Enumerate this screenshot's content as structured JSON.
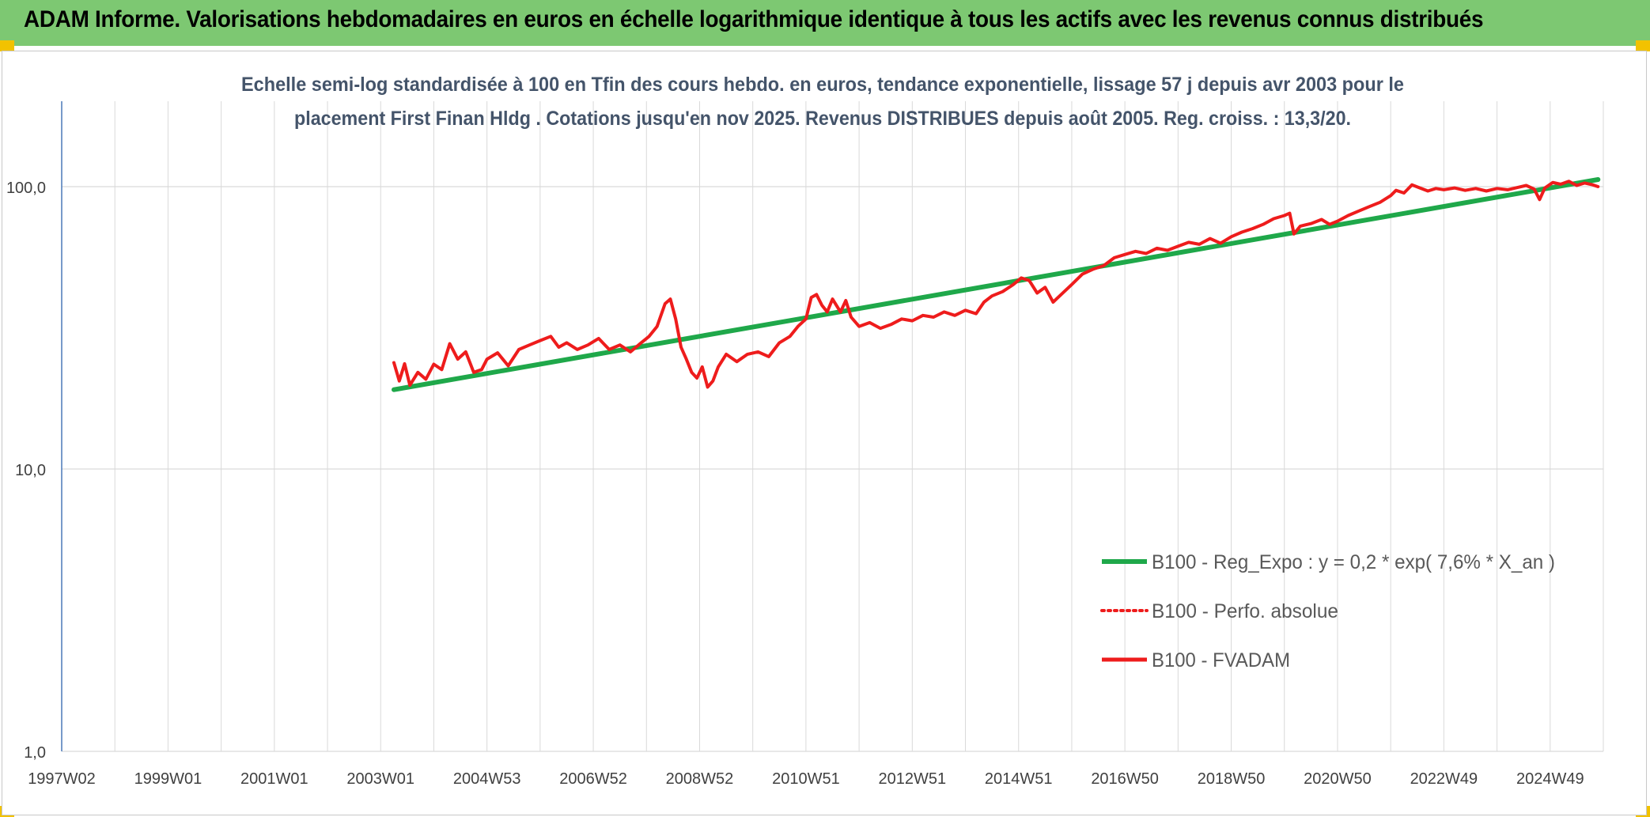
{
  "banner": {
    "title": "ADAM Informe. Valorisations hebdomadaires en euros en échelle logarithmique identique à tous les actifs avec les revenus connus distribués"
  },
  "colors": {
    "banner_bg": "#7dc872",
    "corner_accent": "#f2c200",
    "trend_line": "#1fa84a",
    "price_line": "#ee1c1c",
    "grid": "#d9d9d9",
    "axis_text": "#404040",
    "title_text": "#44546a"
  },
  "chart_data": {
    "type": "line",
    "title_line1": "Echelle semi-log standardisée à 100 en Tfin des cours hebdo. en euros, tendance exponentielle, lissage 57 j depuis avr 2003 pour le",
    "title_line2": "placement First Finan Hldg . Cotations jusqu'en nov 2025. Revenus DISTRIBUES depuis août 2005. Reg. croiss. : 13,3/20.",
    "y_scale": "log",
    "ylim": [
      1,
      100
    ],
    "y_ticks": [
      "100,0",
      "10,0",
      "1,0"
    ],
    "x_range": [
      1997.0,
      2026.0
    ],
    "x_ticks": [
      {
        "x": 1997.0,
        "label": "1997W02"
      },
      {
        "x": 1999.0,
        "label": "1999W01"
      },
      {
        "x": 2001.0,
        "label": "2001W01"
      },
      {
        "x": 2003.0,
        "label": "2003W01"
      },
      {
        "x": 2005.0,
        "label": "2004W53"
      },
      {
        "x": 2007.0,
        "label": "2006W52"
      },
      {
        "x": 2009.0,
        "label": "2008W52"
      },
      {
        "x": 2011.0,
        "label": "2010W51"
      },
      {
        "x": 2013.0,
        "label": "2012W51"
      },
      {
        "x": 2015.0,
        "label": "2014W51"
      },
      {
        "x": 2017.0,
        "label": "2016W50"
      },
      {
        "x": 2019.0,
        "label": "2018W50"
      },
      {
        "x": 2021.0,
        "label": "2020W50"
      },
      {
        "x": 2023.0,
        "label": "2022W49"
      },
      {
        "x": 2025.0,
        "label": "2024W49"
      }
    ],
    "grid": "vertical and horizontal",
    "legend_position": "lower-right",
    "series": [
      {
        "name": "B100 - Reg_Expo : y = 0,2 * exp( 7,6% *  X_an )",
        "style": "solid-thick",
        "color": "#1fa84a",
        "points": [
          [
            2003.25,
            19.1
          ],
          [
            2025.9,
            106.0
          ]
        ]
      },
      {
        "name": "B100 - Perfo. absolue",
        "style": "dotted",
        "color": "#ee1c1c",
        "points": []
      },
      {
        "name": "B100 - FVADAM",
        "style": "solid",
        "color": "#ee1c1c",
        "points": [
          [
            2003.25,
            23.8
          ],
          [
            2003.35,
            20.5
          ],
          [
            2003.45,
            23.6
          ],
          [
            2003.55,
            19.8
          ],
          [
            2003.7,
            22.0
          ],
          [
            2003.85,
            20.8
          ],
          [
            2004.0,
            23.5
          ],
          [
            2004.15,
            22.5
          ],
          [
            2004.3,
            27.8
          ],
          [
            2004.45,
            24.5
          ],
          [
            2004.6,
            26.0
          ],
          [
            2004.75,
            22.0
          ],
          [
            2004.9,
            22.5
          ],
          [
            2005.0,
            24.5
          ],
          [
            2005.2,
            25.8
          ],
          [
            2005.4,
            23.2
          ],
          [
            2005.6,
            26.5
          ],
          [
            2005.8,
            27.5
          ],
          [
            2006.0,
            28.5
          ],
          [
            2006.2,
            29.5
          ],
          [
            2006.35,
            27.0
          ],
          [
            2006.5,
            28.0
          ],
          [
            2006.7,
            26.5
          ],
          [
            2006.9,
            27.5
          ],
          [
            2007.1,
            29.0
          ],
          [
            2007.3,
            26.5
          ],
          [
            2007.5,
            27.5
          ],
          [
            2007.7,
            26.0
          ],
          [
            2007.9,
            28.0
          ],
          [
            2008.05,
            29.5
          ],
          [
            2008.2,
            32.0
          ],
          [
            2008.35,
            38.5
          ],
          [
            2008.45,
            40.0
          ],
          [
            2008.55,
            34.0
          ],
          [
            2008.65,
            27.0
          ],
          [
            2008.75,
            24.5
          ],
          [
            2008.85,
            22.0
          ],
          [
            2008.95,
            21.0
          ],
          [
            2009.05,
            23.0
          ],
          [
            2009.15,
            19.5
          ],
          [
            2009.25,
            20.5
          ],
          [
            2009.35,
            23.0
          ],
          [
            2009.5,
            25.5
          ],
          [
            2009.7,
            24.0
          ],
          [
            2009.9,
            25.5
          ],
          [
            2010.1,
            26.0
          ],
          [
            2010.3,
            25.0
          ],
          [
            2010.5,
            28.0
          ],
          [
            2010.7,
            29.5
          ],
          [
            2010.85,
            32.0
          ],
          [
            2011.0,
            34.0
          ],
          [
            2011.1,
            40.5
          ],
          [
            2011.2,
            41.5
          ],
          [
            2011.3,
            38.0
          ],
          [
            2011.4,
            36.0
          ],
          [
            2011.5,
            40.0
          ],
          [
            2011.65,
            36.0
          ],
          [
            2011.75,
            39.5
          ],
          [
            2011.85,
            34.5
          ],
          [
            2012.0,
            32.0
          ],
          [
            2012.2,
            33.0
          ],
          [
            2012.4,
            31.5
          ],
          [
            2012.6,
            32.5
          ],
          [
            2012.8,
            34.0
          ],
          [
            2013.0,
            33.5
          ],
          [
            2013.2,
            35.0
          ],
          [
            2013.4,
            34.5
          ],
          [
            2013.6,
            36.0
          ],
          [
            2013.8,
            35.0
          ],
          [
            2014.0,
            36.5
          ],
          [
            2014.2,
            35.5
          ],
          [
            2014.35,
            39.0
          ],
          [
            2014.5,
            41.0
          ],
          [
            2014.7,
            42.5
          ],
          [
            2014.9,
            45.0
          ],
          [
            2015.05,
            47.5
          ],
          [
            2015.2,
            46.5
          ],
          [
            2015.35,
            42.0
          ],
          [
            2015.5,
            44.0
          ],
          [
            2015.65,
            39.0
          ],
          [
            2015.8,
            41.5
          ],
          [
            2016.0,
            45.0
          ],
          [
            2016.2,
            49.0
          ],
          [
            2016.4,
            51.0
          ],
          [
            2016.6,
            52.5
          ],
          [
            2016.8,
            56.0
          ],
          [
            2017.0,
            57.5
          ],
          [
            2017.2,
            59.0
          ],
          [
            2017.4,
            58.0
          ],
          [
            2017.6,
            60.5
          ],
          [
            2017.8,
            59.5
          ],
          [
            2018.0,
            61.5
          ],
          [
            2018.2,
            63.5
          ],
          [
            2018.4,
            62.5
          ],
          [
            2018.6,
            65.5
          ],
          [
            2018.8,
            63.0
          ],
          [
            2019.0,
            66.5
          ],
          [
            2019.2,
            69.0
          ],
          [
            2019.4,
            71.0
          ],
          [
            2019.6,
            73.5
          ],
          [
            2019.8,
            77.0
          ],
          [
            2020.0,
            79.0
          ],
          [
            2020.1,
            80.5
          ],
          [
            2020.18,
            68.0
          ],
          [
            2020.3,
            72.5
          ],
          [
            2020.5,
            74.0
          ],
          [
            2020.7,
            76.5
          ],
          [
            2020.85,
            73.5
          ],
          [
            2021.0,
            75.5
          ],
          [
            2021.2,
            79.0
          ],
          [
            2021.4,
            82.0
          ],
          [
            2021.6,
            85.0
          ],
          [
            2021.8,
            88.0
          ],
          [
            2022.0,
            93.0
          ],
          [
            2022.1,
            97.0
          ],
          [
            2022.25,
            95.0
          ],
          [
            2022.4,
            101.5
          ],
          [
            2022.55,
            99.0
          ],
          [
            2022.7,
            96.5
          ],
          [
            2022.85,
            98.5
          ],
          [
            2023.0,
            97.5
          ],
          [
            2023.2,
            99.0
          ],
          [
            2023.4,
            97.0
          ],
          [
            2023.6,
            98.5
          ],
          [
            2023.8,
            96.5
          ],
          [
            2024.0,
            98.5
          ],
          [
            2024.2,
            97.5
          ],
          [
            2024.4,
            99.5
          ],
          [
            2024.55,
            101.0
          ],
          [
            2024.7,
            98.0
          ],
          [
            2024.8,
            90.0
          ],
          [
            2024.9,
            99.0
          ],
          [
            2025.05,
            103.5
          ],
          [
            2025.2,
            102.0
          ],
          [
            2025.35,
            104.5
          ],
          [
            2025.5,
            101.0
          ],
          [
            2025.65,
            103.0
          ],
          [
            2025.8,
            101.5
          ],
          [
            2025.9,
            100.0
          ]
        ]
      }
    ]
  }
}
